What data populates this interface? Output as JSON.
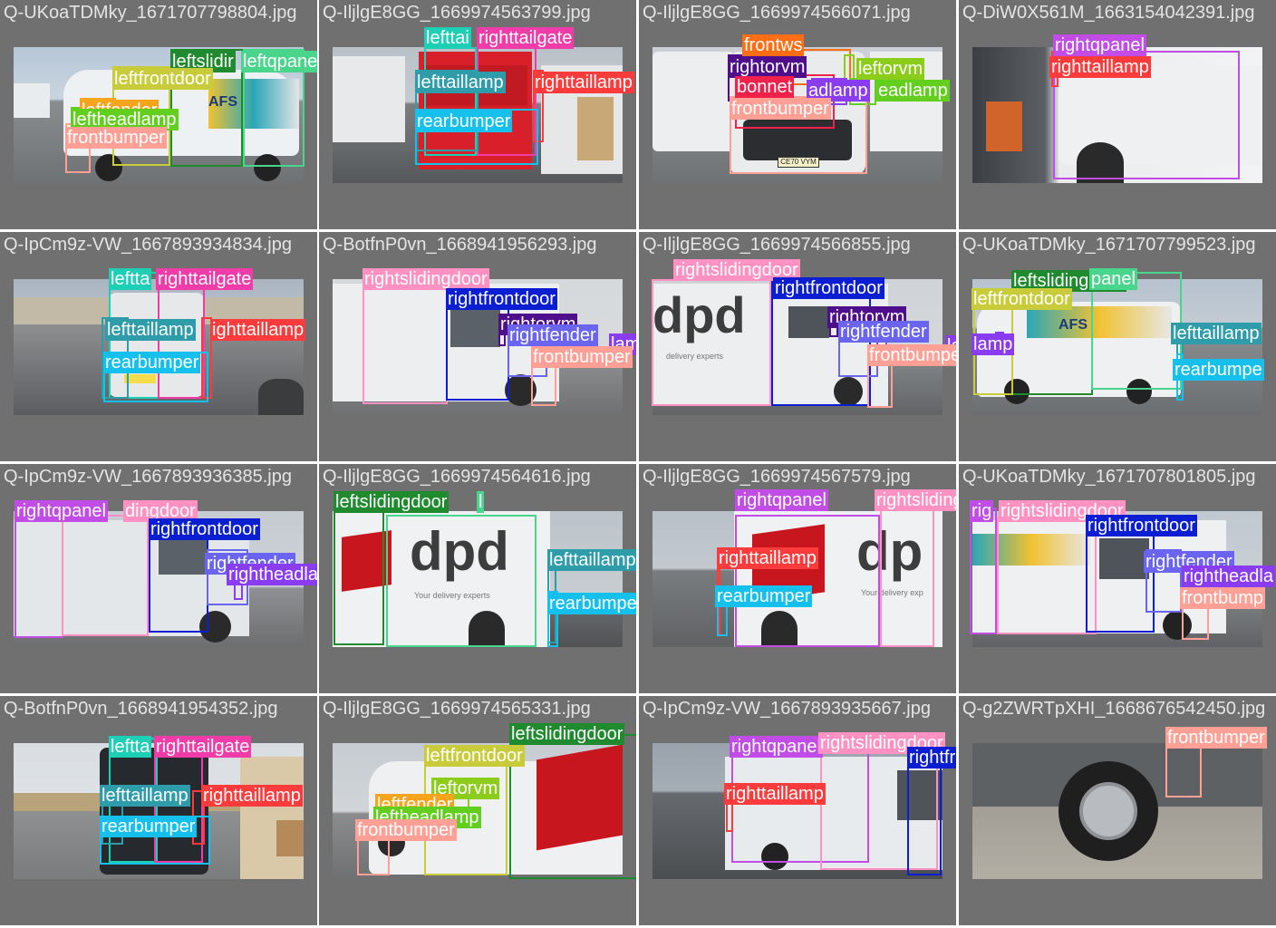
{
  "labels": {
    "colors": {
      "frontbumper": "#ffa096",
      "rightfrontdoor": "#0c1ed2",
      "rightfender": "#6a64f0",
      "righttaillamp": "#fc3c3c",
      "lefttaillamp": "#2f9caa",
      "rearbumper": "#16c0ec",
      "righttailgate": "#f03ca9",
      "lefttailgate": "#1ccfb5",
      "rightqpanel": "#c14de6",
      "rightslidingdoor": "#ff92c2",
      "rightheadlamp": "#8a3df0",
      "rightorvm": "#4f0f8c",
      "leftslidingdoor": "#1f8a2e",
      "leftqpanel": "#4ad58c",
      "leftfrontdoor": "#c9cc3a",
      "leftfender": "#f5a41c",
      "leftheadlamp": "#62cf1e",
      "leftorvm": "#8ccd1c",
      "frontws": "#ff6d14",
      "bonnet": "#f0214b",
      "bg": "#707070"
    }
  },
  "cells": [
    {
      "title": "Q-UKoaTDMky_1671707798804.jpg",
      "scene": "van-side-left",
      "boxes": [
        {
          "c": "leftslidingdoor",
          "t": "leftslidir"
        },
        {
          "c": "leftqpanel",
          "t": "leftqpanel"
        },
        {
          "c": "leftfrontdoor",
          "t": "leftfrontdoor"
        },
        {
          "c": "leftfender",
          "t": "leftfender"
        },
        {
          "c": "leftheadlamp",
          "t": "leftheadlamp"
        },
        {
          "c": "frontbumper",
          "t": "frontbumper"
        }
      ]
    },
    {
      "title": "Q-IljlgE8GG_1669974563799.jpg",
      "scene": "van-rear",
      "boxes": [
        {
          "c": "lefttailgate",
          "t": "lefttai"
        },
        {
          "c": "righttailgate",
          "t": "righttailgate"
        },
        {
          "c": "lefttaillamp",
          "t": "lefttaillamp"
        },
        {
          "c": "righttaillamp",
          "t": "righttaillamp"
        },
        {
          "c": "rearbumper",
          "t": "rearbumper"
        }
      ]
    },
    {
      "title": "Q-IljlgE8GG_1669974566071.jpg",
      "scene": "van-front",
      "boxes": [
        {
          "c": "frontws",
          "t": "frontws"
        },
        {
          "c": "rightorvm",
          "t": "rightorvm"
        },
        {
          "c": "leftorvm",
          "t": "leftorvm"
        },
        {
          "c": "bonnet",
          "t": "bonnet"
        },
        {
          "c": "rightheadlamp",
          "t": "adlamp"
        },
        {
          "c": "leftheadlamp",
          "t": "eadlamp"
        },
        {
          "c": "frontbumper",
          "t": "frontbumper"
        }
      ],
      "plate": "CE70 VYM"
    },
    {
      "title": "Q-DiW0X561M_1663154042391.jpg",
      "scene": "van-side-closeup",
      "boxes": [
        {
          "c": "rightqpanel",
          "t": "rightqpanel"
        },
        {
          "c": "righttaillamp",
          "t": "righttaillamp"
        }
      ]
    },
    {
      "title": "Q-IpCm9z-VW_1667893934834.jpg",
      "scene": "van-rear-far",
      "boxes": [
        {
          "c": "lefttailgate",
          "t": "leftta"
        },
        {
          "c": "righttailgate",
          "t": "righttailgate"
        },
        {
          "c": "lefttaillamp",
          "t": "lefttaillamp"
        },
        {
          "c": "righttaillamp",
          "t": "ighttaillamp"
        },
        {
          "c": "rearbumper",
          "t": "rearbumper"
        }
      ]
    },
    {
      "title": "Q-BotfnP0vn_1668941956293.jpg",
      "scene": "van-side-right",
      "boxes": [
        {
          "c": "rightslidingdoor",
          "t": "rightslidingdoor"
        },
        {
          "c": "rightfrontdoor",
          "t": "rightfrontdoor"
        },
        {
          "c": "rightorvm",
          "t": "rightorvm"
        },
        {
          "c": "rightfender",
          "t": "rightfender"
        },
        {
          "c": "rightheadlamp",
          "t": "lamp"
        },
        {
          "c": "frontbumper",
          "t": "frontbumper"
        }
      ]
    },
    {
      "title": "Q-IljlgE8GG_1669974566855.jpg",
      "scene": "dpd-side-right",
      "boxes": [
        {
          "c": "rightslidingdoor",
          "t": "rightslidingdoor"
        },
        {
          "c": "rightfrontdoor",
          "t": "rightfrontdoor"
        },
        {
          "c": "rightorvm",
          "t": "rightorvm"
        },
        {
          "c": "rightfender",
          "t": "rightfender"
        },
        {
          "c": "rightheadlamp",
          "t": "lamp"
        },
        {
          "c": "frontbumper",
          "t": "frontbumper"
        }
      ],
      "logo": "dpd",
      "tagline": "delivery experts"
    },
    {
      "title": "Q-UKoaTDMky_1671707799523.jpg",
      "scene": "afs-rear-left",
      "boxes": [
        {
          "c": "leftslidingdoor",
          "t": "leftslidingdoor"
        },
        {
          "c": "leftqpanel",
          "t": "panel"
        },
        {
          "c": "leftfrontdoor",
          "t": "leftfrontdoor"
        },
        {
          "c": "rightheadlamp",
          "t": "lamp"
        },
        {
          "c": "lefttaillamp",
          "t": "lefttaillamp"
        },
        {
          "c": "rearbumper",
          "t": "rearbumpe"
        }
      ]
    },
    {
      "title": "Q-IpCm9z-VW_1667893936385.jpg",
      "scene": "van-side-right-2",
      "boxes": [
        {
          "c": "rightqpanel",
          "t": "rightqpanel"
        },
        {
          "c": "rightslidingdoor",
          "t": "dingdoor"
        },
        {
          "c": "rightfrontdoor",
          "t": "rightfrontdoor"
        },
        {
          "c": "rightfender",
          "t": "rightfender"
        },
        {
          "c": "rightheadlamp",
          "t": "rightheadlamp"
        }
      ]
    },
    {
      "title": "Q-IljlgE8GG_1669974564616.jpg",
      "scene": "dpd-rear-left",
      "boxes": [
        {
          "c": "leftslidingdoor",
          "t": "leftslidingdoor"
        },
        {
          "c": "leftqpanel",
          "t": "l"
        },
        {
          "c": "lefttaillamp",
          "t": "lefttaillamp"
        },
        {
          "c": "rearbumper",
          "t": "rearbumper"
        }
      ],
      "logo": "dpd",
      "tagline": "Your delivery experts"
    },
    {
      "title": "Q-IljlgE8GG_1669974567579.jpg",
      "scene": "dpd-rear-right",
      "boxes": [
        {
          "c": "rightqpanel",
          "t": "rightqpanel"
        },
        {
          "c": "rightslidingdoor",
          "t": "rightslidingdoor"
        },
        {
          "c": "righttaillamp",
          "t": "righttaillamp"
        },
        {
          "c": "rearbumper",
          "t": "rearbumper"
        }
      ],
      "logo": "dp",
      "tagline": "Your delivery exp"
    },
    {
      "title": "Q-UKoaTDMky_1671707801805.jpg",
      "scene": "afs-side-right",
      "boxes": [
        {
          "c": "rightqpanel",
          "t": "rig"
        },
        {
          "c": "rightslidingdoor",
          "t": "rightslidingdoor"
        },
        {
          "c": "rightfrontdoor",
          "t": "rightfrontdoor"
        },
        {
          "c": "rightfender",
          "t": "rightfender"
        },
        {
          "c": "rightheadlamp",
          "t": "rightheadla"
        },
        {
          "c": "frontbumper",
          "t": "frontbump"
        }
      ]
    },
    {
      "title": "Q-BotfnP0vn_1668941954352.jpg",
      "scene": "van-rear-2",
      "boxes": [
        {
          "c": "lefttailgate",
          "t": "leftta"
        },
        {
          "c": "righttailgate",
          "t": "righttailgate"
        },
        {
          "c": "lefttaillamp",
          "t": "lefttaillamp"
        },
        {
          "c": "righttaillamp",
          "t": "righttaillamp"
        },
        {
          "c": "rearbumper",
          "t": "rearbumper"
        }
      ]
    },
    {
      "title": "Q-IljlgE8GG_1669974565331.jpg",
      "scene": "dpd-front-left",
      "boxes": [
        {
          "c": "leftslidingdoor",
          "t": "leftslidingdoor"
        },
        {
          "c": "leftfrontdoor",
          "t": "leftfrontdoor"
        },
        {
          "c": "leftorvm",
          "t": "leftorvm"
        },
        {
          "c": "leftfender",
          "t": "leftfender"
        },
        {
          "c": "leftheadlamp",
          "t": "leftheadlamp"
        },
        {
          "c": "frontbumper",
          "t": "frontbumper"
        }
      ]
    },
    {
      "title": "Q-IpCm9z-VW_1667893935667.jpg",
      "scene": "van-side-right-3",
      "boxes": [
        {
          "c": "rightqpanel",
          "t": "rightqpanel"
        },
        {
          "c": "rightslidingdoor",
          "t": "rightslidingdoor"
        },
        {
          "c": "rightfrontdoor",
          "t": "rightfrontdoor"
        },
        {
          "c": "righttaillamp",
          "t": "righttaillamp"
        }
      ]
    },
    {
      "title": "Q-g2ZWRTpXHI_1668676542450.jpg",
      "scene": "wheel-closeup",
      "boxes": [
        {
          "c": "frontbumper",
          "t": "frontbumper"
        }
      ]
    }
  ]
}
